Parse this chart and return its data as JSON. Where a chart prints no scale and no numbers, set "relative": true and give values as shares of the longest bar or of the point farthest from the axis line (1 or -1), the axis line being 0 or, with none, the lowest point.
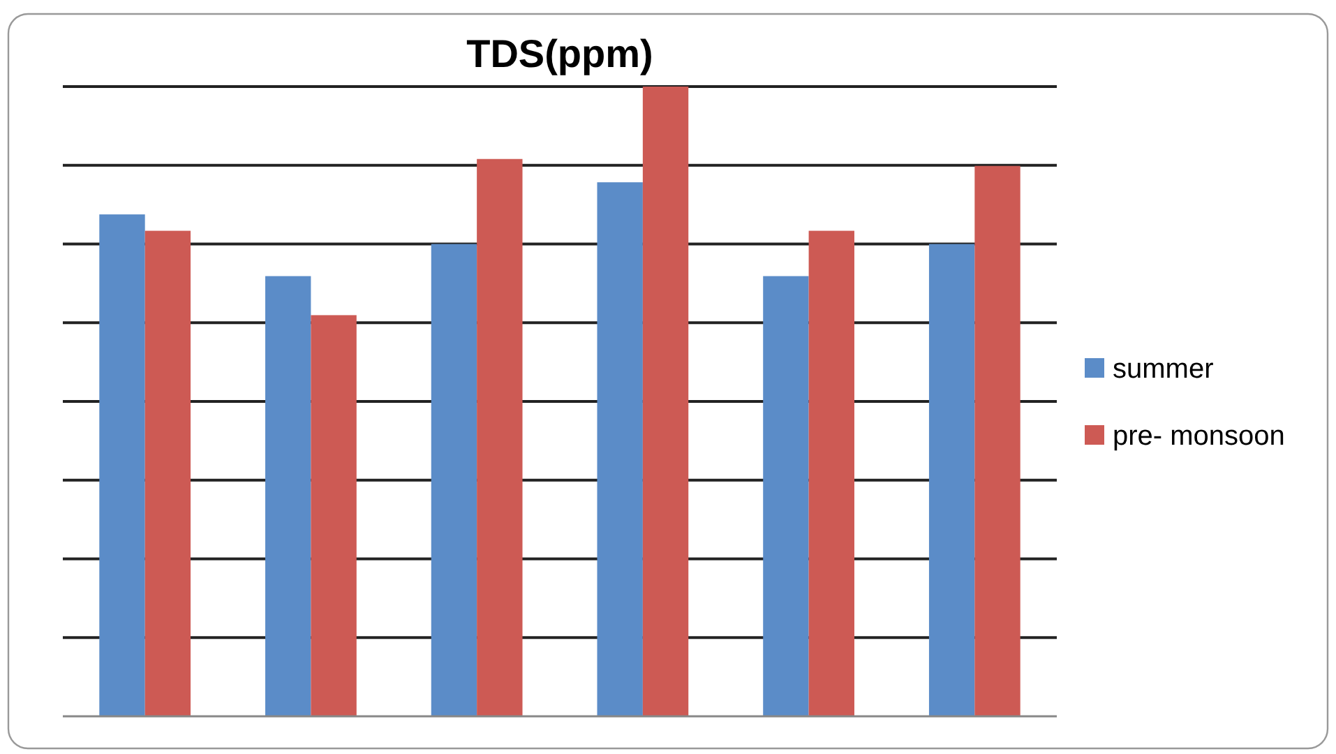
{
  "chart_data": {
    "type": "bar",
    "title": "TDS(ppm)",
    "relative": true,
    "categories": [
      null,
      null,
      null,
      null,
      null,
      null
    ],
    "series": [
      {
        "name": "summer",
        "color": "#5b8cc8",
        "values": [
          0.797,
          0.699,
          0.75,
          0.848,
          0.699,
          0.75
        ]
      },
      {
        "name": "pre- monsoon",
        "color": "#cd5a54",
        "values": [
          0.771,
          0.637,
          0.885,
          1,
          0.771,
          0.874
        ]
      }
    ],
    "grid": "y",
    "legend": "right"
  }
}
